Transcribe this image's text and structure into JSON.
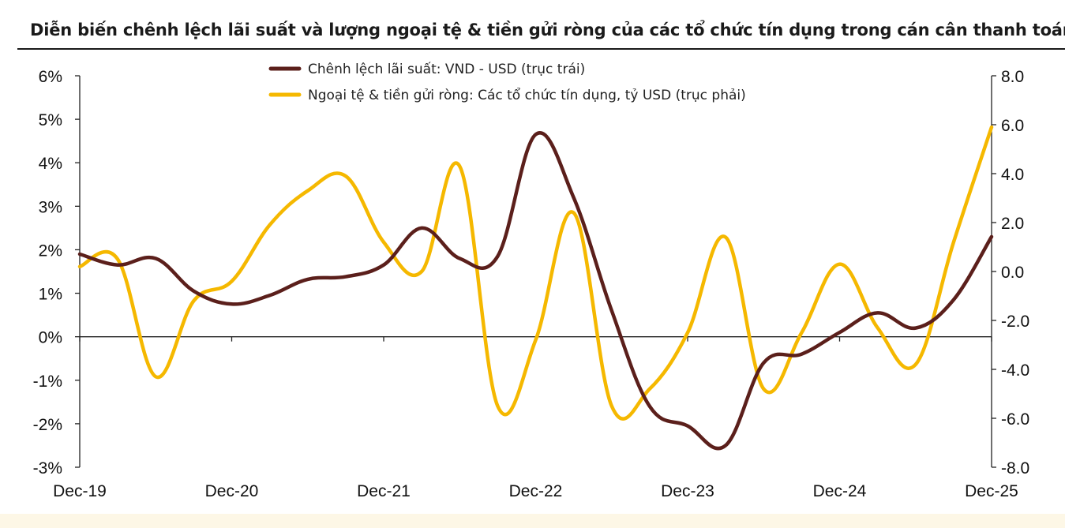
{
  "chart_data": {
    "type": "line",
    "title": "Diễn biến chênh lệch lãi suất và lượng ngoại tệ & tiền gửi ròng của các tổ chức tín dụng trong cán cân thanh toán",
    "x_tick_labels": [
      "Dec-19",
      "Dec-20",
      "Dec-21",
      "Dec-22",
      "Dec-23",
      "Dec-24",
      "Dec-25"
    ],
    "x_range": [
      0,
      24
    ],
    "y_left": {
      "range": [
        -3,
        6
      ],
      "ticks": [
        -3,
        -2,
        -1,
        0,
        1,
        2,
        3,
        4,
        5,
        6
      ],
      "tick_labels": [
        "-3%",
        "-2%",
        "-1%",
        "0%",
        "1%",
        "2%",
        "3%",
        "4%",
        "5%",
        "6%"
      ]
    },
    "y_right": {
      "range": [
        -8,
        8
      ],
      "ticks": [
        -8,
        -6,
        -4,
        -2,
        0,
        2,
        4,
        6,
        8
      ],
      "tick_labels": [
        "-8.0",
        "-6.0",
        "-4.0",
        "-2.0",
        "0.0",
        "2.0",
        "4.0",
        "6.0",
        "8.0"
      ]
    },
    "legend_position": "top-center",
    "grid": false,
    "series": [
      {
        "name": "Chênh lệch lãi suất: VND - USD (trục trái)",
        "axis": "left",
        "color": "#5b1f1b",
        "x": [
          0,
          1,
          2,
          3,
          4,
          5,
          6,
          7,
          8,
          9,
          10,
          11,
          12,
          13,
          14,
          15,
          16,
          17,
          18,
          19,
          20,
          21,
          22,
          23,
          24
        ],
        "values": [
          1.9,
          1.65,
          1.8,
          1.05,
          0.75,
          0.95,
          1.32,
          1.38,
          1.65,
          2.5,
          1.8,
          1.85,
          4.65,
          3.2,
          0.6,
          -1.6,
          -2.05,
          -2.5,
          -0.6,
          -0.4,
          0.1,
          0.55,
          0.2,
          0.85,
          2.3
        ]
      },
      {
        "name": "Ngoại tệ & tiền gửi ròng: Các tổ chức tín dụng, tỷ USD (trục phải)",
        "axis": "right",
        "color": "#f5b800",
        "x": [
          0,
          1,
          2,
          3,
          4,
          5,
          6,
          7,
          8,
          9,
          10,
          11,
          12,
          13,
          14,
          15,
          16,
          17,
          18,
          19,
          20,
          21,
          22,
          23,
          24
        ],
        "values": [
          0.2,
          0.5,
          -4.3,
          -1.2,
          -0.4,
          1.9,
          3.3,
          3.9,
          1.2,
          0,
          4.3,
          -5.5,
          -2.8,
          2.4,
          -5.5,
          -4.8,
          -2.5,
          1.4,
          -4.8,
          -2.5,
          0.3,
          -2.3,
          -3.8,
          1.2,
          5.9
        ]
      }
    ]
  }
}
